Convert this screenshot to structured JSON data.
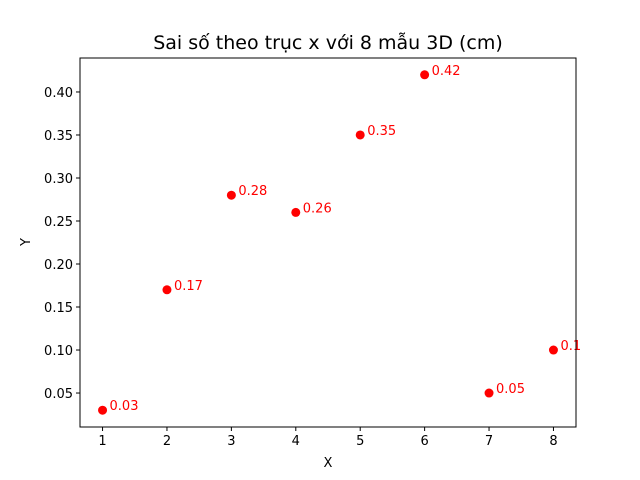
{
  "chart_data": {
    "type": "scatter",
    "title": "Sai số theo trục x với 8 mẫu 3D (cm)",
    "xlabel": "X",
    "ylabel": "Y",
    "x": [
      1,
      2,
      3,
      4,
      5,
      6,
      7,
      8
    ],
    "y": [
      0.03,
      0.17,
      0.28,
      0.26,
      0.35,
      0.42,
      0.05,
      0.1
    ],
    "point_labels": [
      "0.03",
      "0.17",
      "0.28",
      "0.26",
      "0.35",
      "0.42",
      "0.05",
      "0.1"
    ],
    "xlim": [
      0.65,
      8.35
    ],
    "ylim": [
      0.0105,
      0.4395
    ],
    "xticks": [
      1,
      2,
      3,
      4,
      5,
      6,
      7,
      8
    ],
    "xtick_labels": [
      "1",
      "2",
      "3",
      "4",
      "5",
      "6",
      "7",
      "8"
    ],
    "yticks": [
      0.05,
      0.1,
      0.15,
      0.2,
      0.25,
      0.3,
      0.35,
      0.4
    ],
    "ytick_labels": [
      "0.05",
      "0.10",
      "0.15",
      "0.20",
      "0.25",
      "0.30",
      "0.35",
      "0.40"
    ],
    "grid": false,
    "marker_color": "#ff0000",
    "label_color": "#ff0000"
  }
}
